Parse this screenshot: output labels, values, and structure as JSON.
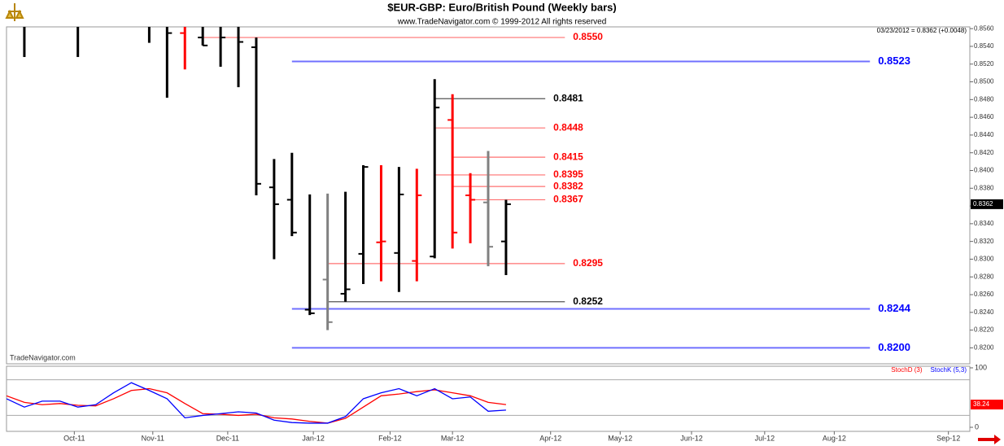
{
  "chart_data": [
    {
      "type": "ohlc",
      "title": "$EUR-GBP:  Euro/British Pound  (Weekly bars)",
      "subtitle": "www.TradeNavigator.com © 1999-2012 All rights reserved",
      "quote": "03/23/2012 = 0.8362 (+0.0048)",
      "watermark": "TradeNavigator.com",
      "last_price": {
        "value": 0.8362,
        "label": "0.8362"
      },
      "xlim": [
        0,
        54
      ],
      "ylim": [
        0.8182,
        0.8562
      ],
      "yticks": [
        {
          "value": 0.82,
          "label": "0.8200"
        },
        {
          "value": 0.822,
          "label": "0.8220"
        },
        {
          "value": 0.824,
          "label": "0.8240"
        },
        {
          "value": 0.826,
          "label": "0.8260"
        },
        {
          "value": 0.828,
          "label": "0.8280"
        },
        {
          "value": 0.83,
          "label": "0.8300"
        },
        {
          "value": 0.832,
          "label": "0.8320"
        },
        {
          "value": 0.834,
          "label": "0.8340"
        },
        {
          "value": 0.836,
          "label": "0.8360"
        },
        {
          "value": 0.838,
          "label": "0.8380"
        },
        {
          "value": 0.84,
          "label": "0.8400"
        },
        {
          "value": 0.842,
          "label": "0.8420"
        },
        {
          "value": 0.844,
          "label": "0.8440"
        },
        {
          "value": 0.846,
          "label": "0.8460"
        },
        {
          "value": 0.848,
          "label": "0.8480"
        },
        {
          "value": 0.85,
          "label": "0.8500"
        },
        {
          "value": 0.852,
          "label": "0.8520"
        },
        {
          "value": 0.854,
          "label": "0.8540"
        },
        {
          "value": 0.856,
          "label": "0.8560"
        }
      ],
      "x": [
        1,
        4,
        8,
        9,
        10,
        11,
        12,
        13,
        14,
        15,
        16,
        17,
        18,
        19,
        20,
        21,
        22,
        23,
        24,
        25,
        26,
        27,
        28
      ],
      "high": [
        0.8562,
        0.8562,
        0.8562,
        0.8562,
        0.8562,
        0.8562,
        0.8562,
        0.8562,
        0.855,
        0.8413,
        0.842,
        0.8373,
        0.8374,
        0.8376,
        0.8406,
        0.8406,
        0.8404,
        0.8402,
        0.8503,
        0.8486,
        0.8397,
        0.8422,
        0.8367
      ],
      "low": [
        0.8528,
        0.8528,
        0.8544,
        0.8482,
        0.8514,
        0.8541,
        0.8517,
        0.8494,
        0.8372,
        0.83,
        0.8326,
        0.8237,
        0.822,
        0.8252,
        0.8272,
        0.8275,
        0.8263,
        0.8275,
        0.8301,
        0.8312,
        0.8318,
        0.8292,
        0.8282
      ],
      "open": [
        null,
        null,
        null,
        null,
        0.8555,
        0.855,
        null,
        null,
        0.8539,
        0.8381,
        0.8367,
        0.8243,
        0.8277,
        0.8261,
        0.8306,
        0.8319,
        0.8307,
        0.8298,
        0.8303,
        0.8457,
        0.8372,
        0.8364,
        0.832
      ],
      "close": [
        null,
        null,
        null,
        0.8555,
        null,
        0.8541,
        0.855,
        0.8545,
        0.8385,
        0.8362,
        0.833,
        0.8239,
        0.8229,
        0.8266,
        0.8404,
        0.832,
        0.8373,
        0.8372,
        0.8471,
        0.833,
        0.8367,
        0.8314,
        0.8362
      ],
      "colors": [
        "#000",
        "#000",
        "#000",
        "#000",
        "#ff0000",
        "#000",
        "#000",
        "#000",
        "#000",
        "#000",
        "#000",
        "#000",
        "#808080",
        "#000",
        "#000",
        "#ff0000",
        "#000",
        "#ff0000",
        "#000",
        "#ff0000",
        "#ff0000",
        "#808080",
        "#000"
      ],
      "levels": [
        {
          "value": 0.855,
          "label": "0.8550",
          "color": "#ff0000",
          "start": 11,
          "end": 31.3
        },
        {
          "value": 0.8523,
          "label": "0.8523",
          "color": "#0000ff",
          "start": 16,
          "end": 48.4
        },
        {
          "value": 0.8481,
          "label": "0.8481",
          "color": "#000000",
          "start": 24,
          "end": 30.2
        },
        {
          "value": 0.8448,
          "label": "0.8448",
          "color": "#ff0000",
          "start": 24,
          "end": 30.2
        },
        {
          "value": 0.8415,
          "label": "0.8415",
          "color": "#ff0000",
          "start": 25,
          "end": 30.2
        },
        {
          "value": 0.8395,
          "label": "0.8395",
          "color": "#ff0000",
          "start": 24,
          "end": 30.2
        },
        {
          "value": 0.8382,
          "label": "0.8382",
          "color": "#ff0000",
          "start": 25,
          "end": 30.2
        },
        {
          "value": 0.8367,
          "label": "0.8367",
          "color": "#ff0000",
          "start": 26,
          "end": 30.2
        },
        {
          "value": 0.8295,
          "label": "0.8295",
          "color": "#ff0000",
          "start": 18,
          "end": 31.3
        },
        {
          "value": 0.8252,
          "label": "0.8252",
          "color": "#000000",
          "start": 18,
          "end": 31.3
        },
        {
          "value": 0.8244,
          "label": "0.8244",
          "color": "#0000ff",
          "start": 16,
          "end": 48.4
        },
        {
          "value": 0.82,
          "label": "0.8200",
          "color": "#0000ff",
          "start": 16,
          "end": 48.4
        }
      ]
    },
    {
      "type": "line",
      "xlim": [
        0,
        54
      ],
      "ylim": [
        -6.8,
        102.7
      ],
      "yticks": [
        0,
        100
      ],
      "levels": [
        20,
        80
      ],
      "xticks": [
        {
          "value": 3.8,
          "label": "Oct-11"
        },
        {
          "value": 8.2,
          "label": "Nov-11"
        },
        {
          "value": 12.4,
          "label": "Dec-11"
        },
        {
          "value": 17.2,
          "label": "Jan-12"
        },
        {
          "value": 21.5,
          "label": "Feb-12"
        },
        {
          "value": 25,
          "label": "Mar-12"
        },
        {
          "value": 30.5,
          "label": "Apr-12"
        },
        {
          "value": 34.4,
          "label": "May-12"
        },
        {
          "value": 38.4,
          "label": "Jun-12"
        },
        {
          "value": 42.5,
          "label": "Jul-12"
        },
        {
          "value": 46.4,
          "label": "Aug-12"
        },
        {
          "value": 52.8,
          "label": "Sep-12"
        }
      ],
      "x": [
        0,
        1,
        2,
        3,
        4,
        5,
        6,
        7,
        8,
        9,
        10,
        11,
        12,
        13,
        14,
        15,
        16,
        17,
        18,
        19,
        20,
        21,
        22,
        23,
        24,
        25,
        26,
        27,
        28
      ],
      "series": [
        {
          "name": "StochD (3)",
          "color": "#ff0000",
          "values": [
            53,
            42,
            38,
            40,
            37,
            36,
            48,
            62,
            65,
            58,
            40,
            23,
            22,
            20,
            22,
            16,
            14,
            10,
            7,
            15,
            34,
            53,
            56,
            60,
            63,
            58,
            53,
            42,
            38.24
          ]
        },
        {
          "name": "StochK (5,3)",
          "color": "#0000ff",
          "values": [
            48,
            34,
            44,
            44,
            34,
            38,
            58,
            75,
            62,
            48,
            16,
            20,
            23,
            26,
            24,
            12,
            8,
            7,
            7,
            18,
            48,
            58,
            65,
            53,
            65,
            48,
            51,
            27,
            29
          ]
        }
      ]
    }
  ]
}
